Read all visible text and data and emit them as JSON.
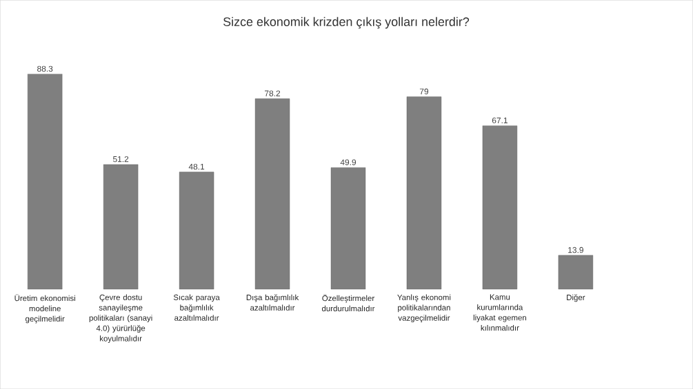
{
  "chart_data": {
    "type": "bar",
    "title": "Sizce ekonomik krizden çıkış yolları nelerdir?",
    "categories": [
      "Üretim ekonomisi modeline geçilmelidir",
      "Çevre dostu sanayileşme politikaları (sanayi 4.0) yürürlüğe koyulmalıdır",
      "Sıcak paraya bağımlılık azaltılmalıdır",
      "Dışa bağımlılık azaltılmalıdır",
      "Özelleştirmeler durdurulmalıdır",
      "Yanlış ekonomi politikalarından vazgeçilmelidir",
      "Kamu kurumlarında liyakat egemen kılınmalıdır",
      "Diğer"
    ],
    "values": [
      88.3,
      51.2,
      48.1,
      78.2,
      49.9,
      79,
      67.1,
      13.9
    ],
    "color": "#7f7f7f",
    "data_labels": true
  }
}
